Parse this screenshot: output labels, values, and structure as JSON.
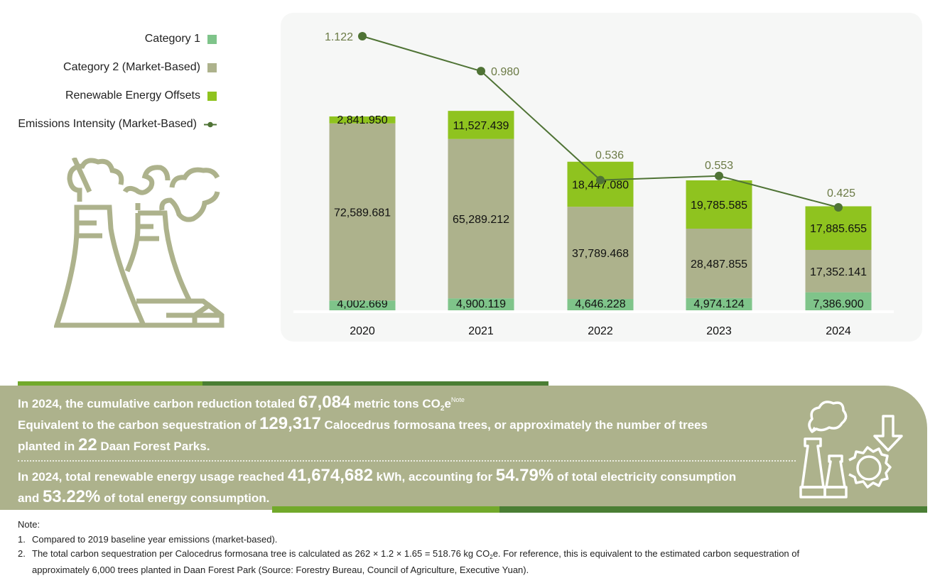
{
  "legend": {
    "items": [
      {
        "label": "Category 1",
        "color": "#7fc48a",
        "marker": "square"
      },
      {
        "label": "Category 2 (Market-Based)",
        "color": "#adb28c",
        "marker": "square"
      },
      {
        "label": "Renewable Energy Offsets",
        "color": "#8fc31f",
        "marker": "square"
      },
      {
        "label": "Emissions Intensity (Market-Based)",
        "color": "#4f7335",
        "marker": "line-dot"
      }
    ]
  },
  "icons": {
    "factory": "factory-smoke-icon",
    "reduction": "factory-gear-down-arrow-icon"
  },
  "chart_data": {
    "type": "bar",
    "stacked": true,
    "categories": [
      "2020",
      "2021",
      "2022",
      "2023",
      "2024"
    ],
    "series": [
      {
        "name": "Category 1",
        "color": "#7fc48a",
        "values": [
          4002.669,
          4900.119,
          4646.228,
          4974.124,
          7386.9
        ],
        "labels": [
          "4,002.669",
          "4,900.119",
          "4,646.228",
          "4,974.124",
          "7,386.900"
        ]
      },
      {
        "name": "Category 2 (Market-Based)",
        "color": "#adb28c",
        "values": [
          72589.681,
          65289.212,
          37789.468,
          28487.855,
          17352.141
        ],
        "labels": [
          "72,589.681",
          "65,289.212",
          "37,789.468",
          "28,487.855",
          "17,352.141"
        ]
      },
      {
        "name": "Renewable Energy Offsets",
        "color": "#8fc31f",
        "values": [
          2841.95,
          11527.439,
          18447.08,
          19785.585,
          17885.655
        ],
        "labels": [
          "2,841.950",
          "11,527.439",
          "18,447.080",
          "19,785.585",
          "17,885.655"
        ]
      }
    ],
    "line_series": {
      "name": "Emissions Intensity (Market-Based)",
      "color": "#4f7335",
      "label_color": "#6b7a45",
      "values": [
        1.122,
        0.98,
        0.536,
        0.553,
        0.425
      ],
      "labels": [
        "1.122",
        "0.980",
        "0.536",
        "0.553",
        "0.425"
      ]
    },
    "title": "",
    "xlabel": "",
    "ylabel": "",
    "grid": false,
    "legend": "left"
  },
  "summary": {
    "line1": {
      "pre": "In 2024, the cumulative carbon reduction totaled ",
      "value": "67,084",
      "post": " metric tons CO",
      "sub": "2",
      "post2": "e",
      "note": "Note"
    },
    "line2": {
      "pre": "Equivalent to the carbon sequestration of ",
      "value": "129,317",
      "post": " Calocedrus formosana trees, or approximately the number of trees"
    },
    "line3": {
      "pre": "planted in ",
      "value": "22",
      "post": " Daan Forest Parks."
    },
    "line4": {
      "pre": "In 2024, total renewable energy usage reached ",
      "value": "41,674,682",
      "mid": " kWh, accounting for ",
      "value2": "54.79%",
      "post": " of total electricity consumption"
    },
    "line5": {
      "pre": "and ",
      "value": "53.22%",
      "post": " of total energy consumption."
    }
  },
  "notes": {
    "title": "Note:",
    "items": [
      {
        "num": "1.",
        "text": "Compared to 2019 baseline year emissions (market-based)."
      },
      {
        "num": "2.",
        "text_a": "The total carbon sequestration per Calocedrus formosana tree is calculated as 262 × 1.2 × 1.65 = 518.76 kg CO",
        "sub": "2",
        "text_b": "e. For reference, this is equivalent to the estimated carbon sequestration of",
        "text_c": "approximately 6,000 trees planted in Daan Forest Park (Source: Forestry Bureau, Council of Agriculture, Executive Yuan)."
      }
    ]
  },
  "colors": {
    "band": "#adb28c",
    "stripe_light": "#72a92b",
    "stripe_dark": "#4a7e34"
  }
}
